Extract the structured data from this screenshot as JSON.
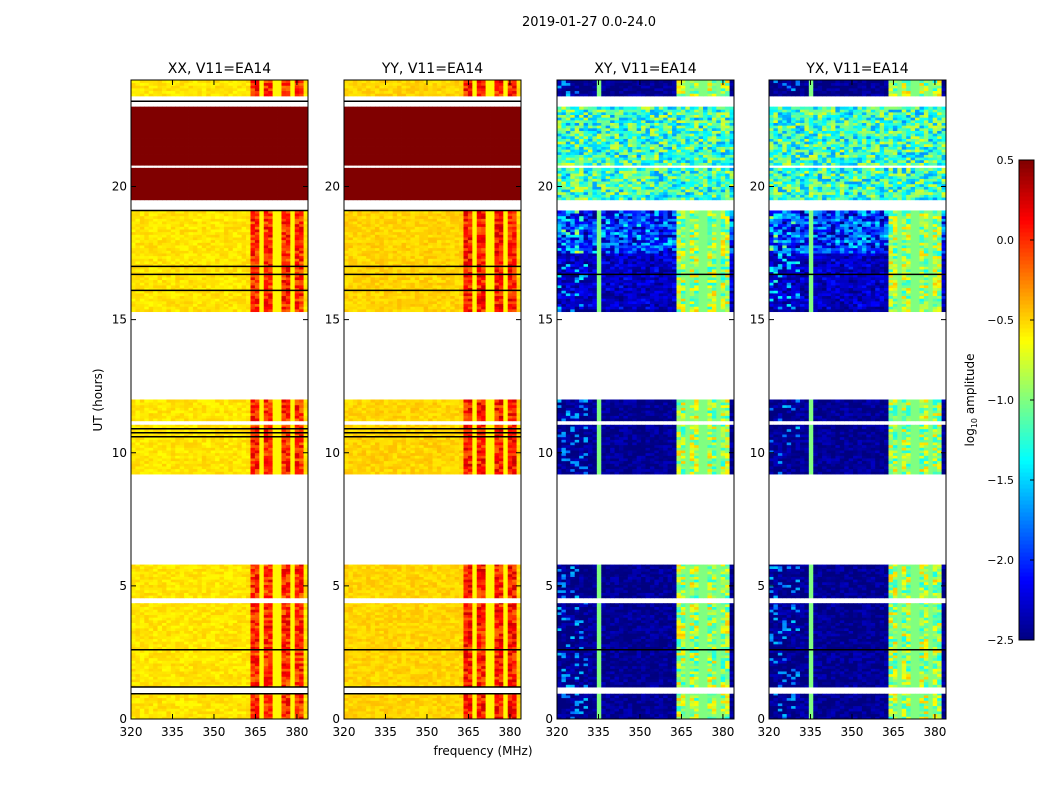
{
  "chart_data": {
    "type": "heatmap",
    "suptitle": "2019-01-27 0.0-24.0",
    "xlabel": "frequency (MHz)",
    "ylabel": "UT (hours)",
    "xlim": [
      320,
      384
    ],
    "ylim": [
      0,
      24
    ],
    "xticks": [
      320,
      335,
      350,
      365,
      380
    ],
    "yticks": [
      0,
      5,
      10,
      15,
      20
    ],
    "colorbar": {
      "label_prefix": "log",
      "label_sub": "10",
      "label_suffix": " amplitude",
      "vmin": -2.5,
      "vmax": 0.5,
      "ticks": [
        "0.5",
        "0.0",
        "−0.5",
        "−1.0",
        "−1.5",
        "−2.0",
        "−2.5"
      ],
      "tick_values": [
        0.5,
        0.0,
        -0.5,
        -1.0,
        -1.5,
        -2.0,
        -2.5
      ],
      "colormap": "jet"
    },
    "data_segments_ut": [
      [
        0,
        0.95
      ],
      [
        1.2,
        2.6
      ],
      [
        2.62,
        4.35
      ],
      [
        4.55,
        5.8
      ],
      [
        9.2,
        11.05
      ],
      [
        11.2,
        12.0
      ],
      [
        15.3,
        19.1
      ],
      [
        19.5,
        20.7
      ],
      [
        20.8,
        23.0
      ],
      [
        23.4,
        24.0
      ]
    ],
    "rfi_band_mhz": [
      362,
      381
    ],
    "subband_gaps_mhz": [
      367,
      372,
      377
    ],
    "panels": [
      {
        "title": "XX, V11=EA14",
        "base_level": -0.55,
        "band_level": 0.0,
        "saturated_ut": [
          [
            19.5,
            23.0
          ]
        ],
        "saturated_level": 0.5,
        "black_lines_ut": [
          0.95,
          1.2,
          2.6,
          10.6,
          10.75,
          10.9,
          16.1,
          16.7,
          17.0,
          19.1,
          23.2
        ],
        "rfi_line_mhz": null
      },
      {
        "title": "YY, V11=EA14",
        "base_level": -0.5,
        "band_level": 0.05,
        "saturated_ut": [
          [
            19.5,
            23.0
          ]
        ],
        "saturated_level": 0.5,
        "black_lines_ut": [
          0.95,
          1.2,
          2.6,
          10.6,
          10.75,
          10.9,
          16.1,
          16.7,
          17.0,
          19.1,
          23.2
        ],
        "rfi_line_mhz": null
      },
      {
        "title": "XY, V11=EA14",
        "base_level": -2.45,
        "band_level": -0.9,
        "saturated_ut": [
          [
            19.5,
            23.0
          ]
        ],
        "saturated_level": -1.2,
        "black_lines_ut": [
          2.6,
          16.7
        ],
        "rfi_line_mhz": 335
      },
      {
        "title": "YX, V11=EA14",
        "base_level": -2.45,
        "band_level": -0.9,
        "saturated_ut": [
          [
            19.5,
            23.0
          ]
        ],
        "saturated_level": -1.2,
        "black_lines_ut": [
          2.6,
          16.7
        ],
        "rfi_line_mhz": 335
      }
    ]
  }
}
